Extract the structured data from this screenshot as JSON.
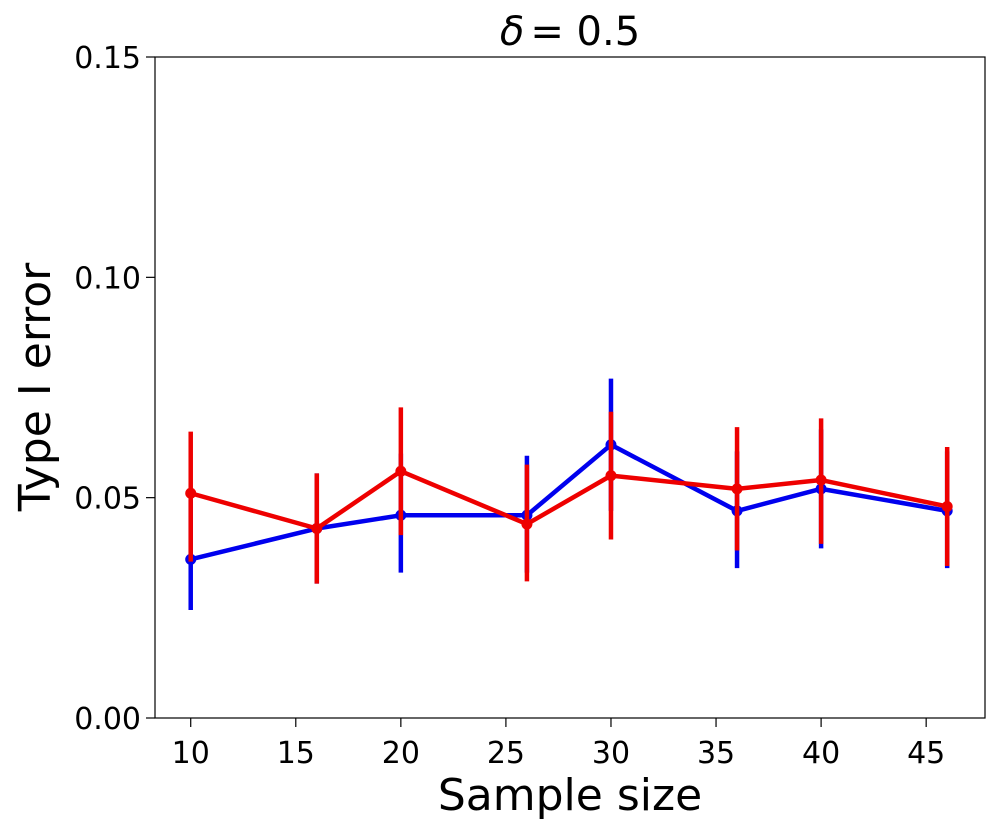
{
  "chart_data": {
    "type": "line",
    "title_symbol": "δ",
    "title_value": "= 0.5",
    "xlabel": "Sample size",
    "ylabel": "Type I error",
    "xlim": [
      8.3,
      47.8
    ],
    "ylim": [
      0.0,
      0.15
    ],
    "x_ticks": [
      10,
      15,
      20,
      25,
      30,
      35,
      40,
      45
    ],
    "x_tick_labels": [
      "10",
      "15",
      "20",
      "25",
      "30",
      "35",
      "40",
      "45"
    ],
    "y_ticks": [
      0.0,
      0.05,
      0.1,
      0.15
    ],
    "y_tick_labels": [
      "0.00",
      "0.05",
      "0.10",
      "0.15"
    ],
    "grid": false,
    "series": [
      {
        "name": "blue",
        "color": "#0000ee",
        "x": [
          10,
          16,
          20,
          26,
          30,
          36,
          40,
          46
        ],
        "values": [
          0.036,
          0.043,
          0.046,
          0.046,
          0.062,
          0.047,
          0.052,
          0.047
        ],
        "err_low": [
          0.0245,
          0.0305,
          0.033,
          0.033,
          0.047,
          0.034,
          0.0385,
          0.034
        ],
        "err_high": [
          0.0495,
          0.0555,
          0.06,
          0.0595,
          0.077,
          0.0605,
          0.0655,
          0.0605
        ]
      },
      {
        "name": "red",
        "color": "#ee0000",
        "x": [
          10,
          16,
          20,
          26,
          30,
          36,
          40,
          46
        ],
        "values": [
          0.051,
          0.043,
          0.056,
          0.044,
          0.055,
          0.052,
          0.054,
          0.048
        ],
        "err_low": [
          0.0355,
          0.0305,
          0.0415,
          0.031,
          0.0405,
          0.038,
          0.0395,
          0.0345
        ],
        "err_high": [
          0.065,
          0.0555,
          0.0705,
          0.0575,
          0.0695,
          0.066,
          0.068,
          0.0615
        ]
      }
    ]
  }
}
